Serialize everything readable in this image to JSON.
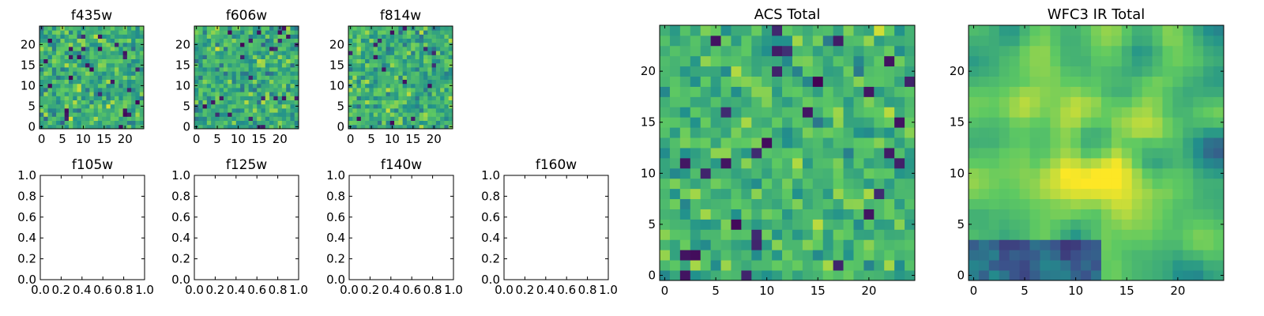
{
  "colormap": {
    "name": "viridis",
    "stops": [
      "#440154",
      "#3b528b",
      "#21918c",
      "#5ec962",
      "#fde725"
    ]
  },
  "chart_data": [
    {
      "type": "heatmap",
      "title": "f435w",
      "nx": 25,
      "ny": 25,
      "xlim": [
        -0.5,
        24.5
      ],
      "ylim": [
        -0.5,
        24.5
      ],
      "xticks": [
        0,
        5,
        10,
        15,
        20
      ],
      "yticks": [
        0,
        5,
        10,
        15,
        20
      ],
      "value_range": [
        0,
        1
      ],
      "seed": 11,
      "smooth": 0,
      "bias": 0.62,
      "spread": 0.22,
      "cells": "25x25 noise field, values 0-1 on viridis scale"
    },
    {
      "type": "heatmap",
      "title": "f606w",
      "nx": 25,
      "ny": 25,
      "xlim": [
        -0.5,
        24.5
      ],
      "ylim": [
        -0.5,
        24.5
      ],
      "xticks": [
        0,
        5,
        10,
        15,
        20
      ],
      "yticks": [
        0,
        5,
        10,
        15,
        20
      ],
      "value_range": [
        0,
        1
      ],
      "seed": 23,
      "smooth": 0,
      "bias": 0.62,
      "spread": 0.22,
      "cells": "25x25 noise field, values 0-1 on viridis scale"
    },
    {
      "type": "heatmap",
      "title": "f814w",
      "nx": 25,
      "ny": 25,
      "xlim": [
        -0.5,
        24.5
      ],
      "ylim": [
        -0.5,
        24.5
      ],
      "xticks": [
        0,
        5,
        10,
        15,
        20
      ],
      "yticks": [
        0,
        5,
        10,
        15,
        20
      ],
      "value_range": [
        0,
        1
      ],
      "seed": 37,
      "smooth": 0,
      "bias": 0.64,
      "spread": 0.22,
      "cells": "25x25 noise field, values 0-1 on viridis scale"
    },
    {
      "type": "line",
      "title": "f105w",
      "series": [],
      "xlim": [
        0,
        1
      ],
      "ylim": [
        0,
        1
      ],
      "xticks": [
        0.0,
        0.2,
        0.4,
        0.6,
        0.8,
        1.0
      ],
      "yticks": [
        0.0,
        0.2,
        0.4,
        0.6,
        0.8,
        1.0
      ],
      "xtick_labels": [
        "0.0",
        "0.2",
        "0.4",
        "0.6",
        "0.8",
        "1.0"
      ],
      "ytick_labels": [
        "0.0",
        "0.2",
        "0.4",
        "0.6",
        "0.8",
        "1.0"
      ]
    },
    {
      "type": "line",
      "title": "f125w",
      "series": [],
      "xlim": [
        0,
        1
      ],
      "ylim": [
        0,
        1
      ],
      "xticks": [
        0.0,
        0.2,
        0.4,
        0.6,
        0.8,
        1.0
      ],
      "yticks": [
        0.0,
        0.2,
        0.4,
        0.6,
        0.8,
        1.0
      ],
      "xtick_labels": [
        "0.0",
        "0.2",
        "0.4",
        "0.6",
        "0.8",
        "1.0"
      ],
      "ytick_labels": [
        "0.0",
        "0.2",
        "0.4",
        "0.6",
        "0.8",
        "1.0"
      ]
    },
    {
      "type": "line",
      "title": "f140w",
      "series": [],
      "xlim": [
        0,
        1
      ],
      "ylim": [
        0,
        1
      ],
      "xticks": [
        0.0,
        0.2,
        0.4,
        0.6,
        0.8,
        1.0
      ],
      "yticks": [
        0.0,
        0.2,
        0.4,
        0.6,
        0.8,
        1.0
      ],
      "xtick_labels": [
        "0.0",
        "0.2",
        "0.4",
        "0.6",
        "0.8",
        "1.0"
      ],
      "ytick_labels": [
        "0.0",
        "0.2",
        "0.4",
        "0.6",
        "0.8",
        "1.0"
      ]
    },
    {
      "type": "line",
      "title": "f160w",
      "series": [],
      "xlim": [
        0,
        1
      ],
      "ylim": [
        0,
        1
      ],
      "xticks": [
        0.0,
        0.2,
        0.4,
        0.6,
        0.8,
        1.0
      ],
      "yticks": [
        0.0,
        0.2,
        0.4,
        0.6,
        0.8,
        1.0
      ],
      "xtick_labels": [
        "0.0",
        "0.2",
        "0.4",
        "0.6",
        "0.8",
        "1.0"
      ],
      "ytick_labels": [
        "0.0",
        "0.2",
        "0.4",
        "0.6",
        "0.8",
        "1.0"
      ]
    },
    {
      "type": "heatmap",
      "title": "ACS Total",
      "nx": 25,
      "ny": 25,
      "xlim": [
        -0.5,
        24.5
      ],
      "ylim": [
        -0.5,
        24.5
      ],
      "xticks": [
        0,
        5,
        10,
        15,
        20
      ],
      "yticks": [
        0,
        5,
        10,
        15,
        20
      ],
      "value_range": [
        0,
        1
      ],
      "seed": 53,
      "smooth": 0,
      "bias": 0.66,
      "spread": 0.18,
      "cells": "25x25 noise field, values 0-1 on viridis scale"
    },
    {
      "type": "heatmap",
      "title": "WFC3 IR Total",
      "nx": 25,
      "ny": 25,
      "xlim": [
        -0.5,
        24.5
      ],
      "ylim": [
        -0.5,
        24.5
      ],
      "xticks": [
        0,
        5,
        10,
        15,
        20
      ],
      "yticks": [
        0,
        5,
        10,
        15,
        20
      ],
      "value_range": [
        0,
        1
      ],
      "seed": 71,
      "smooth": 2,
      "bias": 0.55,
      "spread": 0.2,
      "blob": {
        "cx": 12,
        "cy": 11,
        "sigma": 4.5,
        "amp": 0.35
      },
      "dark_patch": {
        "x0": 0,
        "x1": 12,
        "y0": 0,
        "y1": 3,
        "amp": -0.45
      },
      "cells": "25x25 smooth field with bright central source, values 0-1 on viridis scale"
    }
  ]
}
